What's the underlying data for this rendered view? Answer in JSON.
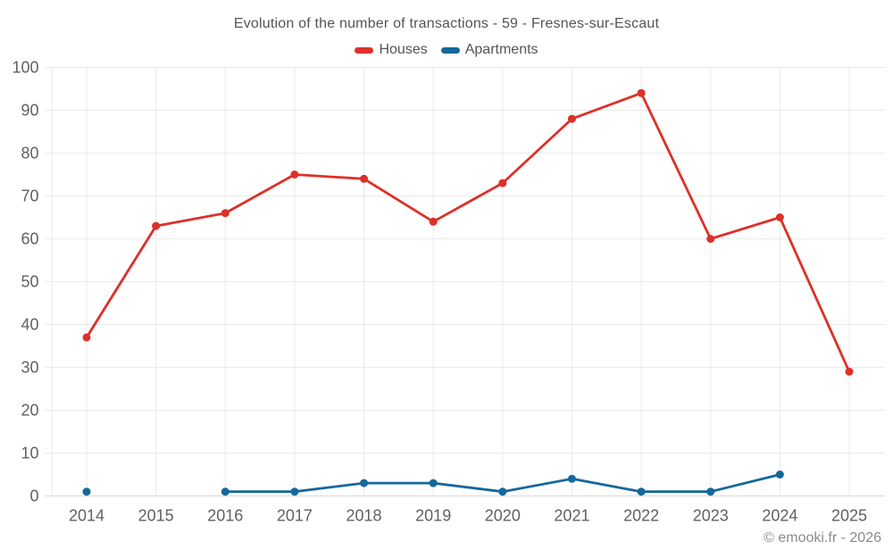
{
  "chart_data": {
    "type": "line",
    "title": "Evolution of the number of transactions - 59 - Fresnes-sur-Escaut",
    "categories": [
      "2014",
      "2015",
      "2016",
      "2017",
      "2018",
      "2019",
      "2020",
      "2021",
      "2022",
      "2023",
      "2024",
      "2025"
    ],
    "series": [
      {
        "name": "Houses",
        "color": "#dd3029",
        "values": [
          37,
          63,
          66,
          75,
          74,
          64,
          73,
          88,
          94,
          60,
          65,
          29
        ]
      },
      {
        "name": "Apartments",
        "color": "#15689b",
        "values": [
          1,
          null,
          1,
          1,
          3,
          3,
          1,
          4,
          1,
          1,
          5,
          null
        ]
      }
    ],
    "xlabel": "",
    "ylabel": "",
    "ylim": [
      0,
      100
    ],
    "ytick_step": 10,
    "yticks": [
      0,
      10,
      20,
      30,
      40,
      50,
      60,
      70,
      80,
      90,
      100
    ],
    "grid": true,
    "legend_position": "top"
  },
  "footer": {
    "text": "© emooki.fr - 2026"
  },
  "colors": {
    "grid": "#eaeaea",
    "axis_line": "#d9d9d9",
    "tick_text": "#616161",
    "title_text": "#545454",
    "footer_text": "#8a8a8a",
    "background": "#ffffff"
  }
}
